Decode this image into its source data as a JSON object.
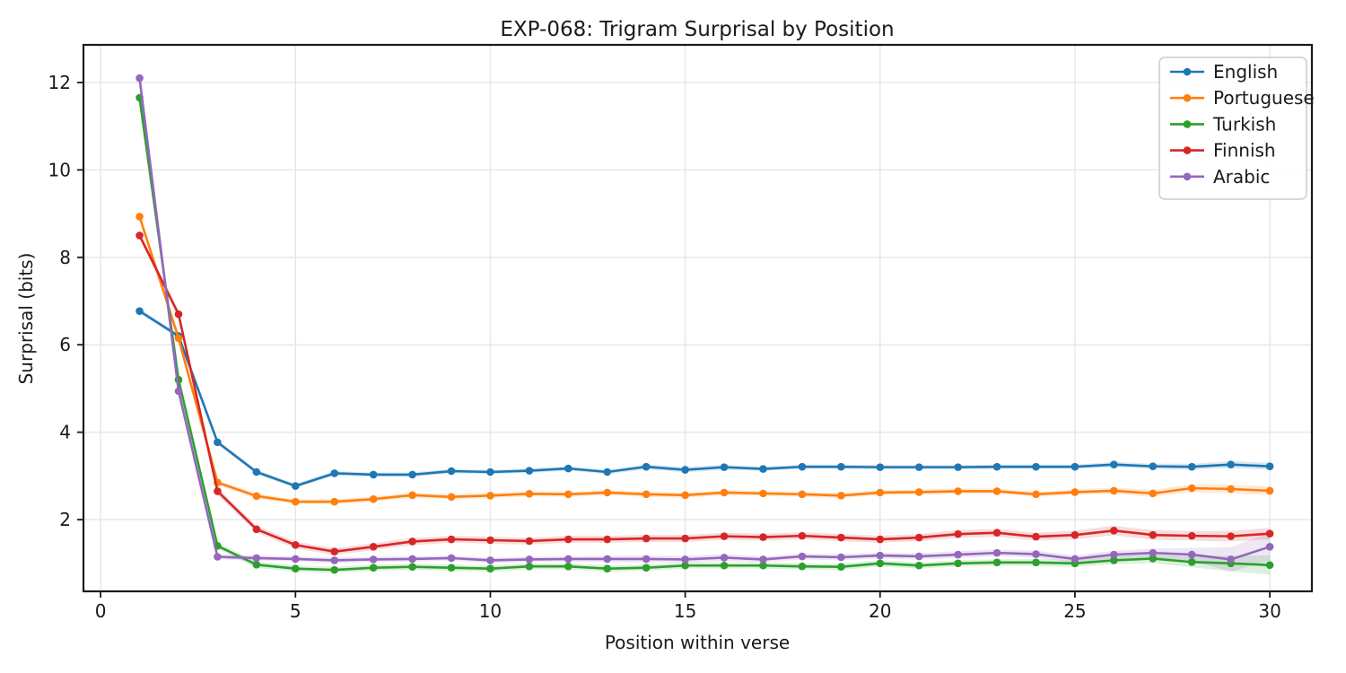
{
  "chart_data": {
    "type": "line",
    "title": "EXP-068: Trigram Surprisal by Position",
    "xlabel": "Position within verse",
    "ylabel": "Surprisal (bits)",
    "grid": true,
    "legend_position": "upper right",
    "xlim": [
      -0.44,
      31.08
    ],
    "ylim": [
      0.36,
      12.86
    ],
    "xticks": [
      0,
      5,
      10,
      15,
      20,
      25,
      30
    ],
    "yticks": [
      2,
      4,
      6,
      8,
      10,
      12
    ],
    "grid_color": "#e6e6e6",
    "axis_color": "#1a1a1a",
    "text_color": "#1a1a1a",
    "background_color": "#ffffff",
    "x": [
      1,
      2,
      3,
      4,
      5,
      6,
      7,
      8,
      9,
      10,
      11,
      12,
      13,
      14,
      15,
      16,
      17,
      18,
      19,
      20,
      21,
      22,
      23,
      24,
      25,
      26,
      27,
      28,
      29,
      30
    ],
    "series": [
      {
        "name": "English",
        "color": "#1f77b4",
        "values": [
          6.77,
          6.2,
          3.77,
          3.09,
          2.77,
          3.06,
          3.03,
          3.03,
          3.11,
          3.09,
          3.12,
          3.17,
          3.09,
          3.21,
          3.14,
          3.2,
          3.16,
          3.21,
          3.21,
          3.2,
          3.2,
          3.2,
          3.21,
          3.21,
          3.21,
          3.26,
          3.22,
          3.21,
          3.26,
          3.22
        ],
        "band": [
          0.05,
          0.05,
          0.05,
          0.05,
          0.05,
          0.05,
          0.05,
          0.05,
          0.05,
          0.05,
          0.05,
          0.05,
          0.05,
          0.06,
          0.06,
          0.06,
          0.05,
          0.05,
          0.05,
          0.05,
          0.05,
          0.05,
          0.05,
          0.05,
          0.05,
          0.06,
          0.06,
          0.07,
          0.08,
          0.08
        ]
      },
      {
        "name": "Portuguese",
        "color": "#ff7f0e",
        "values": [
          8.93,
          6.15,
          2.85,
          2.54,
          2.41,
          2.41,
          2.47,
          2.56,
          2.52,
          2.55,
          2.59,
          2.58,
          2.62,
          2.58,
          2.56,
          2.62,
          2.6,
          2.58,
          2.55,
          2.62,
          2.63,
          2.65,
          2.65,
          2.58,
          2.63,
          2.66,
          2.6,
          2.72,
          2.7,
          2.66
        ],
        "band": [
          0.06,
          0.06,
          0.06,
          0.06,
          0.06,
          0.06,
          0.06,
          0.06,
          0.06,
          0.06,
          0.06,
          0.06,
          0.06,
          0.06,
          0.06,
          0.06,
          0.06,
          0.06,
          0.06,
          0.06,
          0.06,
          0.06,
          0.06,
          0.06,
          0.06,
          0.07,
          0.08,
          0.09,
          0.1,
          0.1
        ]
      },
      {
        "name": "Turkish",
        "color": "#2ca02c",
        "values": [
          11.65,
          5.2,
          1.4,
          0.97,
          0.88,
          0.85,
          0.9,
          0.92,
          0.9,
          0.88,
          0.93,
          0.93,
          0.88,
          0.9,
          0.95,
          0.95,
          0.95,
          0.93,
          0.92,
          1.0,
          0.95,
          1.0,
          1.02,
          1.02,
          1.0,
          1.07,
          1.11,
          1.03,
          1.0,
          0.96
        ],
        "band": [
          0.06,
          0.06,
          0.07,
          0.07,
          0.07,
          0.07,
          0.07,
          0.07,
          0.07,
          0.07,
          0.07,
          0.07,
          0.07,
          0.07,
          0.07,
          0.07,
          0.07,
          0.07,
          0.07,
          0.07,
          0.07,
          0.07,
          0.07,
          0.08,
          0.08,
          0.09,
          0.1,
          0.12,
          0.18,
          0.22
        ]
      },
      {
        "name": "Finnish",
        "color": "#d62728",
        "values": [
          8.5,
          6.7,
          2.65,
          1.78,
          1.42,
          1.27,
          1.38,
          1.5,
          1.55,
          1.53,
          1.51,
          1.55,
          1.55,
          1.57,
          1.57,
          1.62,
          1.6,
          1.63,
          1.59,
          1.55,
          1.59,
          1.67,
          1.7,
          1.61,
          1.65,
          1.75,
          1.65,
          1.63,
          1.62,
          1.68
        ],
        "band": [
          0.07,
          0.07,
          0.08,
          0.08,
          0.08,
          0.08,
          0.08,
          0.08,
          0.08,
          0.08,
          0.08,
          0.08,
          0.08,
          0.08,
          0.08,
          0.08,
          0.08,
          0.08,
          0.08,
          0.08,
          0.08,
          0.09,
          0.09,
          0.09,
          0.1,
          0.11,
          0.11,
          0.11,
          0.12,
          0.13
        ]
      },
      {
        "name": "Arabic",
        "color": "#9467bd",
        "values": [
          12.1,
          4.94,
          1.15,
          1.12,
          1.1,
          1.07,
          1.09,
          1.1,
          1.12,
          1.07,
          1.09,
          1.1,
          1.1,
          1.1,
          1.09,
          1.13,
          1.09,
          1.16,
          1.14,
          1.18,
          1.16,
          1.2,
          1.24,
          1.21,
          1.1,
          1.2,
          1.24,
          1.2,
          1.09,
          1.38
        ],
        "band": [
          0.06,
          0.06,
          0.06,
          0.06,
          0.06,
          0.06,
          0.06,
          0.06,
          0.06,
          0.06,
          0.06,
          0.06,
          0.07,
          0.08,
          0.08,
          0.08,
          0.07,
          0.07,
          0.07,
          0.07,
          0.07,
          0.08,
          0.08,
          0.08,
          0.08,
          0.09,
          0.1,
          0.15,
          0.28,
          0.32
        ]
      }
    ]
  }
}
